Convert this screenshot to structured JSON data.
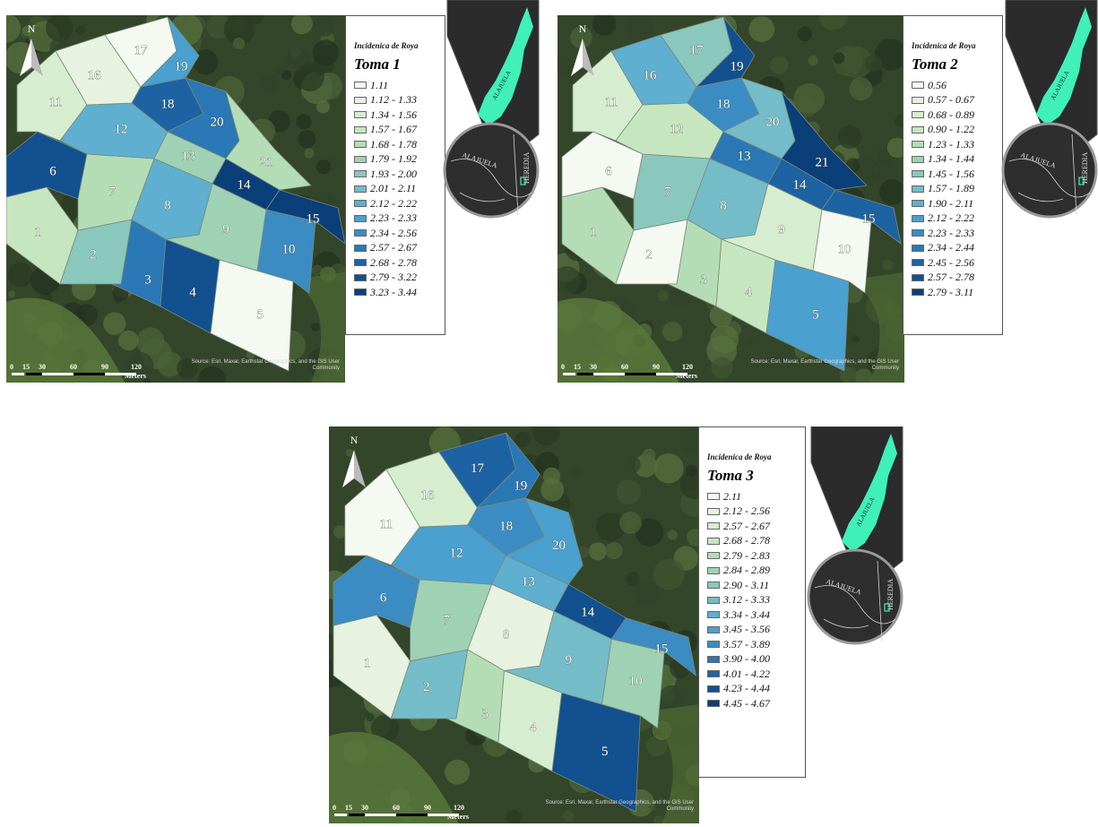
{
  "map_source_credit": "Source: Esri, Maxar, Earthstar Geographics, and the GIS User Community",
  "north_letter": "N",
  "scale": {
    "ticks": [
      "0",
      "15",
      "30",
      "60",
      "90",
      "120"
    ],
    "unit": "Meters"
  },
  "inset_labels": {
    "district": "ALAJUELA",
    "province_left": "ALAJUELA",
    "province_right": "HEREDIA"
  },
  "colors": {
    "ramp": [
      "#f4faf1",
      "#e7f3e0",
      "#d7edd0",
      "#c6e6c0",
      "#b4ddb6",
      "#9fd1b5",
      "#8ac7bd",
      "#74bcc8",
      "#5eafd0",
      "#4aa0cf",
      "#3a8cc3",
      "#2a78b5",
      "#1d63a3",
      "#12508f",
      "#0b3f7a"
    ],
    "inset_highlight": "#3ff0b8",
    "inset_bg": "#2b2b2b"
  },
  "maps": [
    {
      "subtitle": "Incidenica de Roya",
      "title": "Toma 1",
      "legend": [
        {
          "label": "1.11",
          "color": "#f4faf1"
        },
        {
          "label": "1.12 - 1.33",
          "color": "#e7f3e0"
        },
        {
          "label": "1.34 - 1.56",
          "color": "#d7edd0"
        },
        {
          "label": "1.57 - 1.67",
          "color": "#c6e6c0"
        },
        {
          "label": "1.68 - 1.78",
          "color": "#b4ddb6"
        },
        {
          "label": "1.79 - 1.92",
          "color": "#9fd1b5"
        },
        {
          "label": "1.93 - 2.00",
          "color": "#8ac7bd"
        },
        {
          "label": "2.01 - 2.11",
          "color": "#74bcc8"
        },
        {
          "label": "2.12 - 2.22",
          "color": "#5eafd0"
        },
        {
          "label": "2.23 - 2.33",
          "color": "#4aa0cf"
        },
        {
          "label": "2.34 - 2.56",
          "color": "#3a8cc3"
        },
        {
          "label": "2.57 - 2.67",
          "color": "#2a78b5"
        },
        {
          "label": "2.68 - 2.78",
          "color": "#1d63a3"
        },
        {
          "label": "2.79 - 3.22",
          "color": "#12508f"
        },
        {
          "label": "3.23 - 3.44",
          "color": "#0b3f7a"
        }
      ],
      "plots": [
        {
          "id": "1",
          "class": 3
        },
        {
          "id": "2",
          "class": 6
        },
        {
          "id": "3",
          "class": 11
        },
        {
          "id": "4",
          "class": 13
        },
        {
          "id": "5",
          "class": 0
        },
        {
          "id": "6",
          "class": 13
        },
        {
          "id": "7",
          "class": 4
        },
        {
          "id": "8",
          "class": 8
        },
        {
          "id": "9",
          "class": 5
        },
        {
          "id": "10",
          "class": 10
        },
        {
          "id": "11",
          "class": 2
        },
        {
          "id": "12",
          "class": 8
        },
        {
          "id": "13",
          "class": 5
        },
        {
          "id": "14",
          "class": 14
        },
        {
          "id": "15",
          "class": 14
        },
        {
          "id": "16",
          "class": 1
        },
        {
          "id": "17",
          "class": 0
        },
        {
          "id": "18",
          "class": 12
        },
        {
          "id": "19",
          "class": 9
        },
        {
          "id": "20",
          "class": 11
        },
        {
          "id": "21",
          "class": 4
        }
      ]
    },
    {
      "subtitle": "Incidenica de Roya",
      "title": "Toma 2",
      "legend": [
        {
          "label": "0.56",
          "color": "#f4faf1"
        },
        {
          "label": "0.57 - 0.67",
          "color": "#e7f3e0"
        },
        {
          "label": "0.68 - 0.89",
          "color": "#d7edd0"
        },
        {
          "label": "0.90 - 1.22",
          "color": "#c6e6c0"
        },
        {
          "label": "1.23 - 1.33",
          "color": "#b4ddb6"
        },
        {
          "label": "1.34 - 1.44",
          "color": "#9fd1b5"
        },
        {
          "label": "1.45 - 1.56",
          "color": "#8ac7bd"
        },
        {
          "label": "1.57 - 1.89",
          "color": "#74bcc8"
        },
        {
          "label": "1.90 - 2.11",
          "color": "#5eafd0"
        },
        {
          "label": "2.12 - 2.22",
          "color": "#4aa0cf"
        },
        {
          "label": "2.23 - 2.33",
          "color": "#3a8cc3"
        },
        {
          "label": "2.34 - 2.44",
          "color": "#2a78b5"
        },
        {
          "label": "2.45 - 2.56",
          "color": "#1d63a3"
        },
        {
          "label": "2.57 - 2.78",
          "color": "#12508f"
        },
        {
          "label": "2.79 - 3.11",
          "color": "#0b3f7a"
        }
      ],
      "plots": [
        {
          "id": "1",
          "class": 4
        },
        {
          "id": "2",
          "class": 0
        },
        {
          "id": "3",
          "class": 4
        },
        {
          "id": "4",
          "class": 3
        },
        {
          "id": "5",
          "class": 9
        },
        {
          "id": "6",
          "class": 0
        },
        {
          "id": "7",
          "class": 6
        },
        {
          "id": "8",
          "class": 7
        },
        {
          "id": "9",
          "class": 2
        },
        {
          "id": "10",
          "class": 0
        },
        {
          "id": "11",
          "class": 2
        },
        {
          "id": "12",
          "class": 3
        },
        {
          "id": "13",
          "class": 11
        },
        {
          "id": "14",
          "class": 12
        },
        {
          "id": "15",
          "class": 12
        },
        {
          "id": "16",
          "class": 8
        },
        {
          "id": "17",
          "class": 6
        },
        {
          "id": "18",
          "class": 10
        },
        {
          "id": "19",
          "class": 13
        },
        {
          "id": "20",
          "class": 7
        },
        {
          "id": "21",
          "class": 14
        }
      ]
    },
    {
      "subtitle": "Incidenica de Roya",
      "title": "Toma 3",
      "legend": [
        {
          "label": "2.11",
          "color": "#f4faf1"
        },
        {
          "label": "2.12 - 2.56",
          "color": "#e7f3e0"
        },
        {
          "label": "2.57 - 2.67",
          "color": "#d7edd0"
        },
        {
          "label": "2.68 - 2.78",
          "color": "#c6e6c0"
        },
        {
          "label": "2.79 - 2.83",
          "color": "#b4ddb6"
        },
        {
          "label": "2.84 - 2.89",
          "color": "#9fd1b5"
        },
        {
          "label": "2.90 - 3.11",
          "color": "#8ac7bd"
        },
        {
          "label": "3.12 - 3.33",
          "color": "#74bcc8"
        },
        {
          "label": "3.34 - 3.44",
          "color": "#5eafd0"
        },
        {
          "label": "3.45 - 3.56",
          "color": "#4aa0cf"
        },
        {
          "label": "3.57 - 3.89",
          "color": "#3a8cc3"
        },
        {
          "label": "3.90 - 4.00",
          "color": "#2a78b5"
        },
        {
          "label": "4.01 - 4.22",
          "color": "#1d63a3"
        },
        {
          "label": "4.23 - 4.44",
          "color": "#12508f"
        },
        {
          "label": "4.45 - 4.67",
          "color": "#0b3f7a"
        }
      ],
      "plots": [
        {
          "id": "1",
          "class": 1
        },
        {
          "id": "2",
          "class": 7
        },
        {
          "id": "3",
          "class": 4
        },
        {
          "id": "4",
          "class": 2
        },
        {
          "id": "5",
          "class": 13
        },
        {
          "id": "6",
          "class": 10
        },
        {
          "id": "7",
          "class": 5
        },
        {
          "id": "8",
          "class": 1
        },
        {
          "id": "9",
          "class": 7
        },
        {
          "id": "10",
          "class": 5
        },
        {
          "id": "11",
          "class": 0
        },
        {
          "id": "12",
          "class": 9
        },
        {
          "id": "13",
          "class": 8
        },
        {
          "id": "14",
          "class": 13
        },
        {
          "id": "15",
          "class": 10
        },
        {
          "id": "16",
          "class": 2
        },
        {
          "id": "17",
          "class": 12
        },
        {
          "id": "18",
          "class": 10
        },
        {
          "id": "19",
          "class": 11
        },
        {
          "id": "20",
          "class": 9
        }
      ]
    }
  ]
}
